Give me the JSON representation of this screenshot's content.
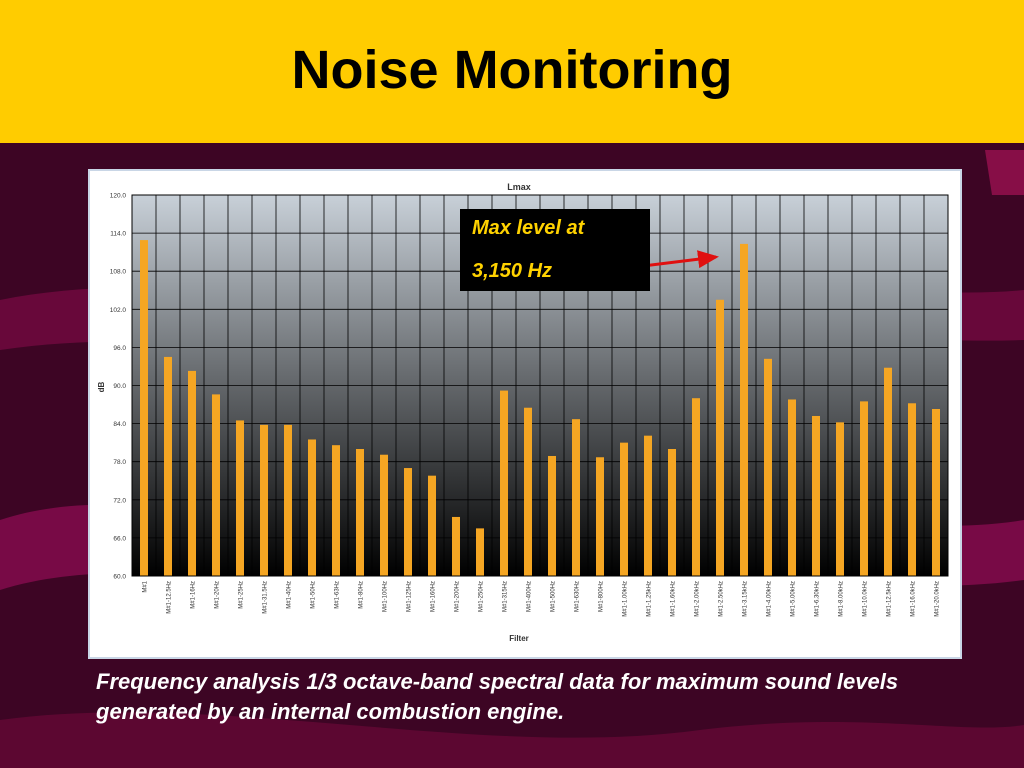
{
  "slide": {
    "title": "Noise Monitoring",
    "caption": "Frequency analysis 1/3 octave-band spectral data for maximum sound levels generated by an internal combustion engine.",
    "callout": {
      "line1": "Max level at",
      "line2": "3,150 Hz"
    }
  },
  "colors": {
    "header_bg": "#ffcc00",
    "slide_bg": "#3d0524",
    "bar": "#f5a623",
    "callout_text": "#ffd200",
    "arrow": "#e01010"
  },
  "chart_data": {
    "type": "bar",
    "title": "Lmax",
    "xlabel": "Filter",
    "ylabel": "dB",
    "ylim": [
      60,
      120
    ],
    "yticks": [
      "60.0",
      "66.0",
      "72.0",
      "78.0",
      "84.0",
      "90.0",
      "96.0",
      "102.0",
      "108.0",
      "114.0",
      "120.0"
    ],
    "grid": true,
    "categories": [
      "M#1",
      "M#1-12.5Hz",
      "M#1-16Hz",
      "M#1-20Hz",
      "M#1-25Hz",
      "M#1-31.5Hz",
      "M#1-40Hz",
      "M#1-50Hz",
      "M#1-63Hz",
      "M#1-80Hz",
      "M#1-100Hz",
      "M#1-125Hz",
      "M#1-160Hz",
      "M#1-200Hz",
      "M#1-250Hz",
      "M#1-315Hz",
      "M#1-400Hz",
      "M#1-500Hz",
      "M#1-630Hz",
      "M#1-800Hz",
      "M#1-1.00kHz",
      "M#1-1.25kHz",
      "M#1-1.60kHz",
      "M#1-2.00kHz",
      "M#1-2.50kHz",
      "M#1-3.15kHz",
      "M#1-4.00kHz",
      "M#1-5.00kHz",
      "M#1-6.30kHz",
      "M#1-8.00kHz",
      "M#1-10.0kHz",
      "M#1-12.5kHz",
      "M#1-16.0kHz",
      "M#1-20.0kHz"
    ],
    "values": [
      112.9,
      94.5,
      92.3,
      88.6,
      84.5,
      83.8,
      83.8,
      81.5,
      80.6,
      80.0,
      79.1,
      77.0,
      75.8,
      69.3,
      67.5,
      89.2,
      86.5,
      78.9,
      84.7,
      78.7,
      81.0,
      82.1,
      80.0,
      88.0,
      103.5,
      112.3,
      94.2,
      87.8,
      85.2,
      84.2,
      87.5,
      92.8,
      87.2,
      86.3
    ],
    "annotations": [
      "Max level at 3,150 Hz"
    ]
  }
}
